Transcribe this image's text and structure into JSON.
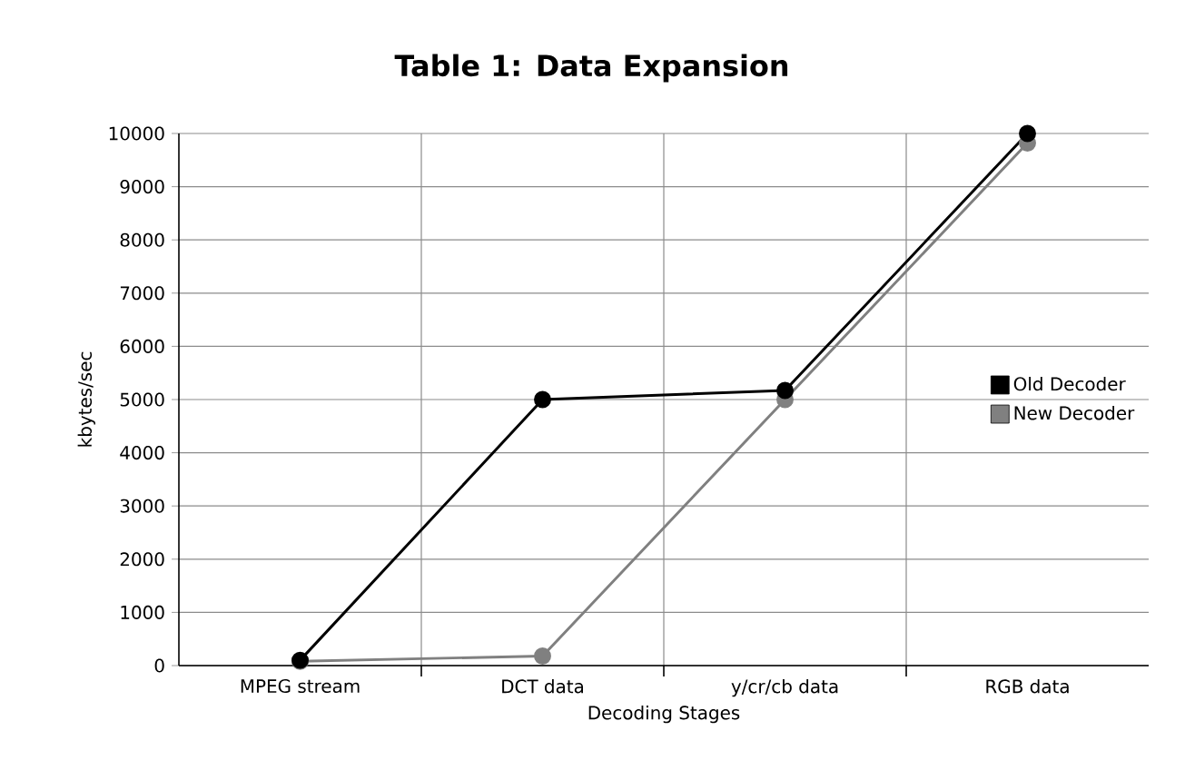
{
  "chart_data": {
    "type": "line",
    "title": "Table 1: Data Expansion",
    "xlabel": "Decoding Stages",
    "ylabel": "kbytes/sec",
    "categories": [
      "MPEG stream",
      "DCT data",
      "y/cr/cb data",
      "RGB data"
    ],
    "series": [
      {
        "name": "Old Decoder",
        "color": "#000000",
        "values": [
          100,
          5000,
          5170,
          10000
        ]
      },
      {
        "name": "New Decoder",
        "color": "#808080",
        "values": [
          80,
          180,
          5000,
          9820
        ]
      }
    ],
    "ylim": [
      0,
      10000
    ],
    "yticks": [
      0,
      1000,
      2000,
      3000,
      4000,
      5000,
      6000,
      7000,
      8000,
      9000,
      10000
    ],
    "grid": true,
    "legend": "right",
    "marker": "circle",
    "line_style": "solid"
  }
}
